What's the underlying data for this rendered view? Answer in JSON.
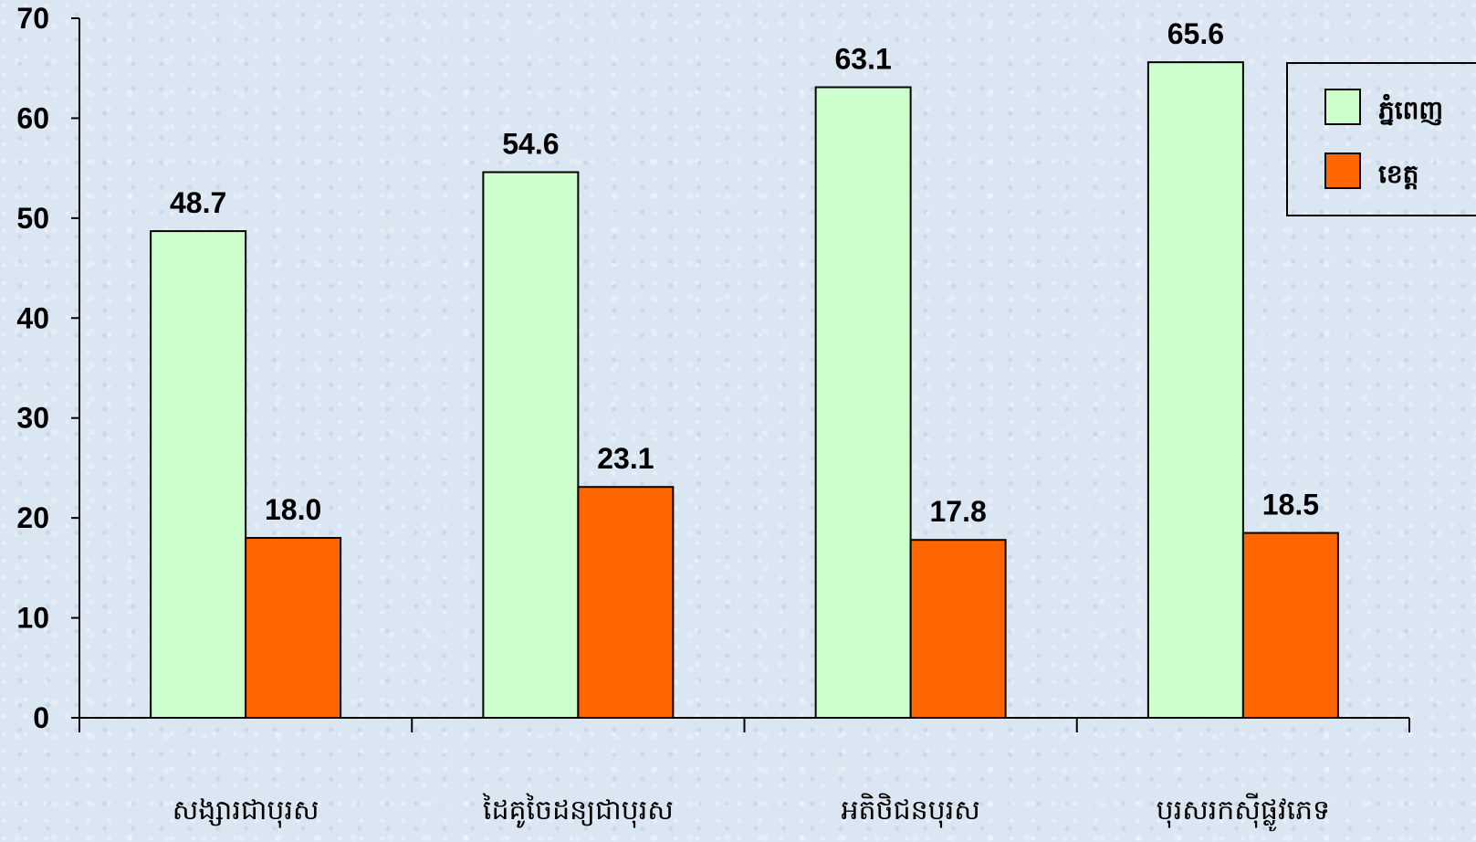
{
  "chart_data": {
    "type": "bar",
    "categories": [
      "សង្សារជាបុរស",
      "ដៃគូចៃដន្យជាបុរស",
      "អតិថិជនបុរស",
      "បុរសរកស៊ីផ្លូវភេទ"
    ],
    "series": [
      {
        "name": "ភ្នំពេញ",
        "values": [
          48.7,
          54.6,
          63.1,
          65.6
        ]
      },
      {
        "name": "ខេត្ត",
        "values": [
          18.0,
          23.1,
          17.8,
          18.5
        ]
      }
    ],
    "ylim": [
      0,
      70
    ],
    "yticks": [
      0,
      10,
      20,
      30,
      40,
      50,
      60,
      70
    ],
    "data_labels": true,
    "grid": false,
    "legend_position": "top-right"
  },
  "colors": {
    "series": [
      "#ccffcc",
      "#ff6600"
    ],
    "axis": "#000000"
  }
}
